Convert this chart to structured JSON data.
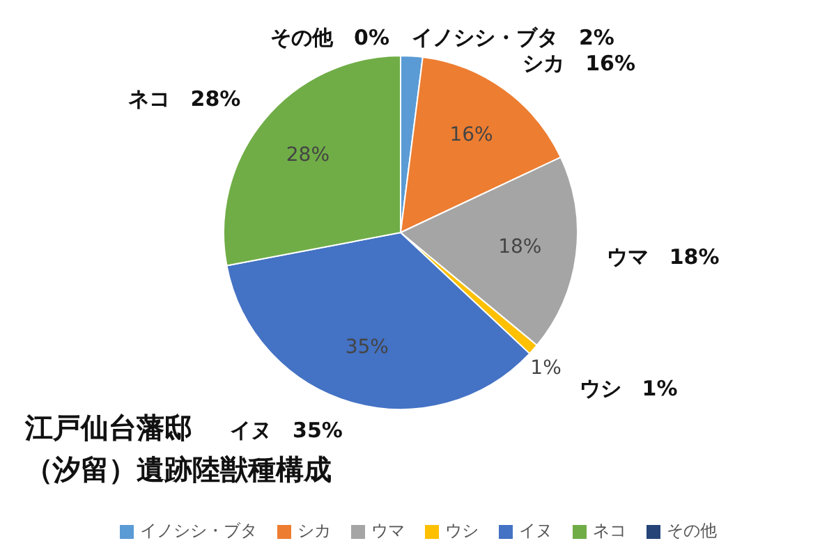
{
  "chart_data": {
    "type": "pie",
    "title": "江戸仙台藩邸（汐留）遺跡陸獣種構成",
    "categories": [
      "イノシシ・ブタ",
      "シカ",
      "ウマ",
      "ウシ",
      "イヌ",
      "ネコ",
      "その他"
    ],
    "values": [
      2,
      16,
      18,
      1,
      35,
      28,
      0
    ],
    "value_labels": [
      "2%",
      "16%",
      "18%",
      "1%",
      "35%",
      "28%",
      "0%"
    ],
    "colors": [
      "#5b9bd5",
      "#ed7d31",
      "#a5a5a5",
      "#ffc000",
      "#4472c4",
      "#70ad47",
      "#264478"
    ],
    "legend": "bottom"
  }
}
